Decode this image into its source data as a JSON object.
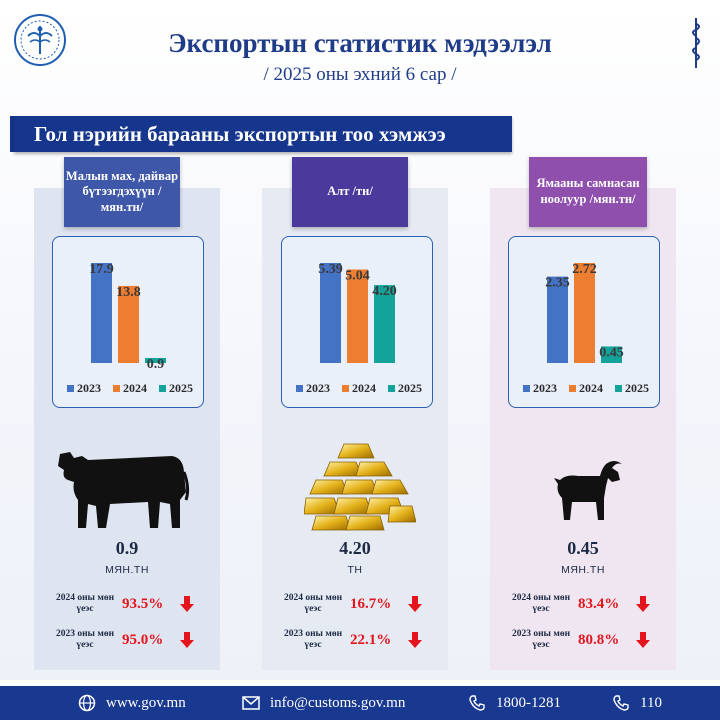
{
  "header": {
    "title": "Экспортын статистик мэдээлэл",
    "subtitle": "/ 2025 оны эхний 6 сар /"
  },
  "section_title": "Гол нэрийн барааны экспортын тоо хэмжээ",
  "colors": {
    "y2023": "#4472c4",
    "y2024": "#ed7d31",
    "y2025": "#14a39a",
    "decrease": "#e3141c",
    "banner": "#16358c"
  },
  "legend": [
    "2023",
    "2024",
    "2025"
  ],
  "panels": [
    {
      "category": "Малын мах, дайвар бүтээгдэхүүн /мян.тн/",
      "icon": "cow-icon",
      "current_value": "0.9",
      "unit": "МЯН.ТН",
      "comparisons": [
        {
          "label": "2024 оны мөн үеэс",
          "pct": "93.5%"
        },
        {
          "label": "2023 оны мөн үеэс",
          "pct": "95.0%"
        }
      ]
    },
    {
      "category": "Алт /тн/",
      "icon": "gold-bars-icon",
      "current_value": "4.20",
      "unit": "ТН",
      "comparisons": [
        {
          "label": "2024 оны мөн үеэс",
          "pct": "16.7%"
        },
        {
          "label": "2023 оны мөн үеэс",
          "pct": "22.1%"
        }
      ]
    },
    {
      "category": "Ямааны самнасан ноолуур /мян.тн/",
      "icon": "goat-icon",
      "current_value": "0.45",
      "unit": "МЯН.ТН",
      "comparisons": [
        {
          "label": "2024 оны мөн үеэс",
          "pct": "83.4%"
        },
        {
          "label": "2023 оны мөн үеэс",
          "pct": "80.8%"
        }
      ]
    }
  ],
  "chart_data": [
    {
      "type": "bar",
      "categories": [
        "2023",
        "2024",
        "2025"
      ],
      "values": [
        17.9,
        13.8,
        0.9
      ],
      "labels": [
        "17.9",
        "13.8",
        "0.9"
      ]
    },
    {
      "type": "bar",
      "categories": [
        "2023",
        "2024",
        "2025"
      ],
      "values": [
        5.39,
        5.04,
        4.2
      ],
      "labels": [
        "5.39",
        "5.04",
        "4.20"
      ]
    },
    {
      "type": "bar",
      "categories": [
        "2023",
        "2024",
        "2025"
      ],
      "values": [
        2.35,
        2.72,
        0.45
      ],
      "labels": [
        "2.35",
        "2.72",
        "0.45"
      ]
    }
  ],
  "footer": {
    "website": "www.gov.mn",
    "email": "info@customs.gov.mn",
    "phone": "1800-1281",
    "hotline": "110"
  }
}
